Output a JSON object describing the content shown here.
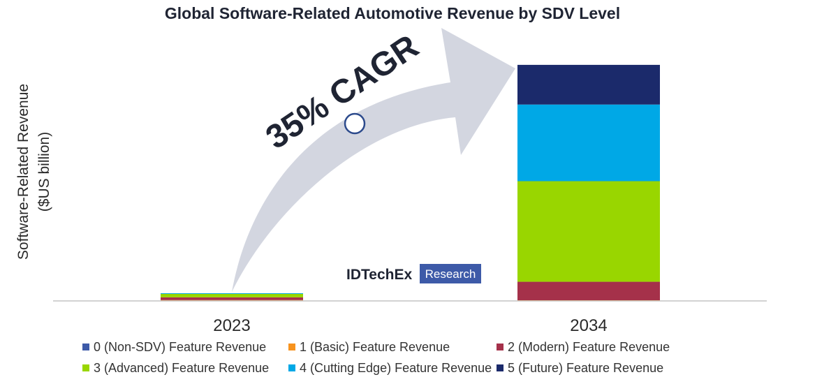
{
  "chart_data": {
    "type": "bar",
    "stacked": true,
    "title": "Global Software-Related Automotive Revenue by SDV Level",
    "ylabel_line1": "Software-Related Revenue",
    "ylabel_line2": "($US billion)",
    "categories": [
      "2023",
      "2034"
    ],
    "ylim": [
      0,
      700
    ],
    "grid": false,
    "legend_position": "bottom",
    "series": [
      {
        "name": "0 (Non-SDV) Feature Revenue",
        "color": "#3d5aa8",
        "values": [
          0.5,
          0
        ]
      },
      {
        "name": "1 (Basic) Feature Revenue",
        "color": "#f7931e",
        "values": [
          2,
          2
        ]
      },
      {
        "name": "2 (Modern) Feature Revenue",
        "color": "#a5314a",
        "values": [
          8,
          54
        ]
      },
      {
        "name": "3 (Advanced) Feature Revenue",
        "color": "#99d600",
        "values": [
          10,
          294
        ]
      },
      {
        "name": "4 (Cutting Edge) Feature Revenue",
        "color": "#00a8e6",
        "values": [
          2,
          224
        ]
      },
      {
        "name": "5 (Future) Feature Revenue",
        "color": "#1b2a6b",
        "values": [
          0,
          116
        ]
      }
    ],
    "annotation": "35% CAGR"
  },
  "logo": {
    "brand": "IDTechEx",
    "sub": "Research"
  }
}
